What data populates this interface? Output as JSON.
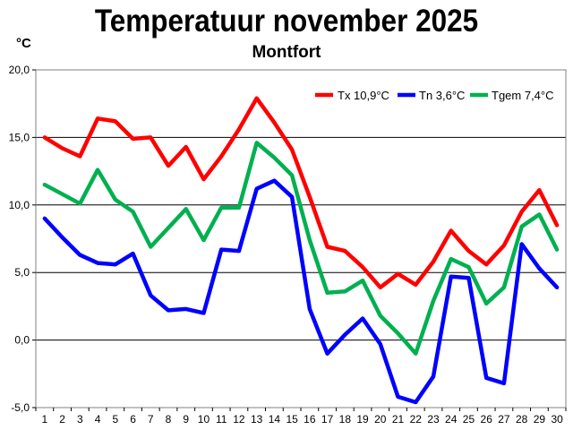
{
  "chart_data": {
    "type": "line",
    "title": "Temperatuur november 2025",
    "subtitle": "Montfort",
    "ylabel": "°C",
    "xlabel": "",
    "ylim": [
      -5,
      20
    ],
    "yticks": [
      "20,0",
      "15,0",
      "10,0",
      "5,0",
      "0,0",
      "-5,0"
    ],
    "ytick_values": [
      20,
      15,
      10,
      5,
      0,
      -5
    ],
    "grid": true,
    "legend_position": "top-right",
    "x": [
      1,
      2,
      3,
      4,
      5,
      6,
      7,
      8,
      9,
      10,
      11,
      12,
      13,
      14,
      15,
      16,
      17,
      18,
      19,
      20,
      21,
      22,
      23,
      24,
      25,
      26,
      27,
      28,
      29,
      30
    ],
    "series": [
      {
        "name": "Tx 10,9°C",
        "color": "#ff0000",
        "values": [
          15.0,
          14.2,
          13.6,
          16.4,
          16.2,
          14.9,
          15.0,
          12.9,
          14.3,
          11.9,
          13.6,
          15.6,
          17.9,
          16.1,
          14.1,
          10.6,
          6.9,
          6.6,
          5.4,
          3.9,
          4.9,
          4.1,
          5.8,
          8.1,
          6.6,
          5.6,
          7.0,
          9.5,
          11.1,
          8.5
        ]
      },
      {
        "name": "Tn 3,6°C",
        "color": "#0000ff",
        "values": [
          9.0,
          7.6,
          6.3,
          5.7,
          5.6,
          6.4,
          3.3,
          2.2,
          2.3,
          2.0,
          6.7,
          6.6,
          11.2,
          11.8,
          10.6,
          2.3,
          -1.0,
          0.4,
          1.6,
          -0.3,
          -4.2,
          -4.6,
          -2.7,
          4.7,
          4.6,
          -2.8,
          -3.2,
          7.1,
          5.3,
          3.9
        ]
      },
      {
        "name": "Tgem 7,4°C",
        "color": "#00b050",
        "values": [
          11.5,
          10.8,
          10.1,
          12.6,
          10.4,
          9.5,
          6.9,
          8.3,
          9.7,
          7.4,
          9.8,
          9.8,
          14.6,
          13.5,
          12.2,
          7.4,
          3.5,
          3.6,
          4.4,
          1.8,
          0.5,
          -1.0,
          2.9,
          6.0,
          5.4,
          2.7,
          3.9,
          8.4,
          9.3,
          6.7
        ]
      }
    ]
  }
}
